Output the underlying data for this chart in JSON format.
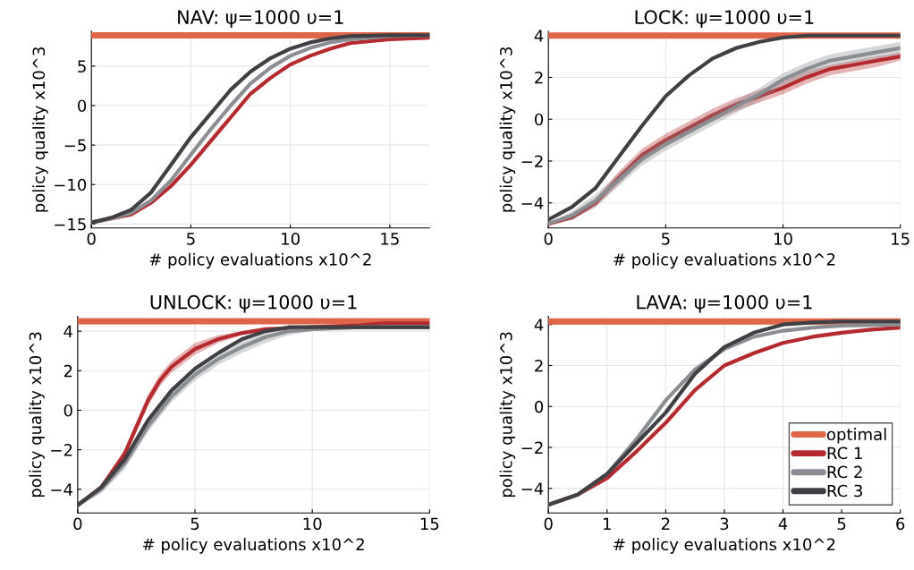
{
  "chart_data": [
    {
      "type": "line",
      "title": "NAV: ψ=1000 υ=1",
      "xlabel": "# policy evaluations x10^2",
      "ylabel": "policy quality x10^3",
      "xlim": [
        0,
        17
      ],
      "xticks": [
        0,
        5,
        10,
        15
      ],
      "ylim": [
        -15.5,
        9.4
      ],
      "yticks": [
        -15,
        -10,
        -5,
        0,
        5
      ],
      "grid": true,
      "legend": false,
      "series": [
        {
          "color": "#e0664a",
          "x": [
            0,
            17
          ],
          "values": [
            8.9,
            8.9
          ]
        },
        {
          "color": "#b52a2e",
          "x": [
            0,
            1,
            2,
            3,
            4,
            5,
            6,
            7,
            8,
            9,
            10,
            11,
            12,
            13,
            15,
            17
          ],
          "values": [
            -14.8,
            -14.3,
            -13.8,
            -12.3,
            -10.2,
            -7.5,
            -4.5,
            -1.5,
            1.5,
            3.5,
            5.2,
            6.3,
            7.2,
            7.9,
            8.4,
            8.6
          ]
        },
        {
          "color": "#8a8d91",
          "x": [
            0,
            1,
            2,
            3,
            4,
            5,
            6,
            7,
            8,
            9,
            10,
            11,
            12,
            13,
            15,
            17
          ],
          "values": [
            -14.8,
            -14.3,
            -13.6,
            -12,
            -9.5,
            -6.2,
            -3,
            0,
            2.8,
            4.8,
            6.3,
            7.3,
            8,
            8.4,
            8.8,
            8.9
          ]
        },
        {
          "color": "#404044",
          "x": [
            0,
            1,
            2,
            3,
            4,
            5,
            6,
            7,
            8,
            9,
            10,
            11,
            12,
            13,
            15,
            17
          ],
          "values": [
            -14.8,
            -14.2,
            -13.2,
            -11,
            -7.5,
            -4,
            -1,
            2,
            4.3,
            6,
            7.2,
            8,
            8.5,
            8.8,
            8.9,
            8.9
          ]
        }
      ]
    },
    {
      "type": "line",
      "title": "LOCK: ψ=1000 υ=1",
      "xlabel": "# policy evaluations x10^2",
      "ylabel": "policy quality x10^3",
      "xlim": [
        0,
        15
      ],
      "xticks": [
        0,
        5,
        10,
        15
      ],
      "ylim": [
        -5.2,
        4.2
      ],
      "yticks": [
        -4,
        -2,
        0,
        2,
        4
      ],
      "grid": true,
      "legend": false,
      "series": [
        {
          "color": "#e0664a",
          "x": [
            0,
            15
          ],
          "values": [
            4.0,
            4.0
          ]
        },
        {
          "color": "#b52a2e",
          "x": [
            0,
            1,
            2,
            3,
            4,
            5,
            6,
            7,
            8,
            9,
            10,
            11,
            12,
            13,
            14,
            15
          ],
          "values": [
            -5,
            -4.7,
            -4,
            -2.8,
            -1.7,
            -1,
            -0.4,
            0.2,
            0.7,
            1.1,
            1.5,
            2,
            2.4,
            2.6,
            2.8,
            3.0
          ],
          "lower": [
            -5,
            -4.8,
            -4.2,
            -3.1,
            -2,
            -1.3,
            -0.7,
            -0.1,
            0.4,
            0.8,
            1.2,
            1.7,
            2.1,
            2.3,
            2.5,
            2.8
          ],
          "upper": [
            -5,
            -4.6,
            -3.8,
            -2.5,
            -1.4,
            -0.7,
            -0.1,
            0.5,
            1.0,
            1.4,
            1.8,
            2.3,
            2.6,
            2.8,
            3.0,
            3.2
          ]
        },
        {
          "color": "#8a8d91",
          "x": [
            0,
            1,
            2,
            3,
            4,
            5,
            6,
            7,
            8,
            9,
            10,
            11,
            12,
            13,
            14,
            15
          ],
          "values": [
            -5,
            -4.6,
            -3.9,
            -2.9,
            -1.9,
            -1.2,
            -0.6,
            0,
            0.6,
            1.2,
            1.9,
            2.4,
            2.8,
            3,
            3.2,
            3.4
          ],
          "lower": [
            -5,
            -4.8,
            -4.2,
            -3.2,
            -2.2,
            -1.5,
            -0.9,
            -0.3,
            0.3,
            0.9,
            1.6,
            2.1,
            2.5,
            2.7,
            2.9,
            3.1
          ],
          "upper": [
            -5,
            -4.4,
            -3.6,
            -2.6,
            -1.6,
            -0.9,
            -0.3,
            0.3,
            0.9,
            1.5,
            2.2,
            2.7,
            3.1,
            3.3,
            3.5,
            3.7
          ]
        },
        {
          "color": "#404044",
          "x": [
            0,
            1,
            2,
            3,
            4,
            5,
            6,
            7,
            8,
            9,
            10,
            11,
            13,
            15
          ],
          "values": [
            -4.8,
            -4.2,
            -3.3,
            -1.8,
            -0.3,
            1.1,
            2.1,
            2.9,
            3.4,
            3.7,
            3.9,
            4,
            4,
            4
          ]
        }
      ]
    },
    {
      "type": "line",
      "title": "UNLOCK: ψ=1000 υ=1",
      "xlabel": "# policy evaluations x10^2",
      "ylabel": "policy quality x10^3",
      "xlim": [
        0,
        15
      ],
      "xticks": [
        0,
        5,
        10,
        15
      ],
      "ylim": [
        -5.2,
        4.75
      ],
      "yticks": [
        -4,
        -2,
        0,
        2,
        4
      ],
      "grid": true,
      "legend": false,
      "series": [
        {
          "color": "#e0664a",
          "x": [
            0,
            15
          ],
          "values": [
            4.5,
            4.5
          ]
        },
        {
          "color": "#b52a2e",
          "x": [
            0,
            1,
            2,
            3,
            3.5,
            4,
            5,
            6,
            7,
            8,
            10,
            12,
            13,
            15
          ],
          "values": [
            -4.8,
            -3.9,
            -2.2,
            0.5,
            1.5,
            2.2,
            3.1,
            3.6,
            3.9,
            4.1,
            4.2,
            4.3,
            4.4,
            4.4
          ],
          "lower": [
            -4.8,
            -4.0,
            -2.4,
            0.2,
            1.2,
            1.9,
            2.8,
            3.4,
            3.8,
            4.0,
            4.2,
            4.3,
            4.4,
            4.4
          ],
          "upper": [
            -4.8,
            -3.8,
            -2.0,
            0.8,
            1.8,
            2.5,
            3.4,
            3.8,
            4.0,
            4.2,
            4.2,
            4.3,
            4.4,
            4.4
          ]
        },
        {
          "color": "#8a8d91",
          "x": [
            0,
            1,
            2,
            3,
            4,
            5,
            6,
            7,
            8,
            9,
            10,
            12,
            15
          ],
          "values": [
            -4.8,
            -4,
            -2.7,
            -0.8,
            0.7,
            1.8,
            2.6,
            3.2,
            3.7,
            4,
            4.1,
            4.2,
            4.2
          ],
          "lower": [
            -4.9,
            -4.2,
            -3.0,
            -1.1,
            0.4,
            1.5,
            2.3,
            2.9,
            3.4,
            3.8,
            4.0,
            4.1,
            4.1
          ],
          "upper": [
            -4.7,
            -3.8,
            -2.4,
            -0.5,
            1.0,
            2.1,
            2.9,
            3.5,
            3.9,
            4.1,
            4.2,
            4.3,
            4.3
          ]
        },
        {
          "color": "#404044",
          "x": [
            0,
            1,
            2,
            3,
            4,
            5,
            6,
            7,
            8,
            9,
            10,
            12,
            15
          ],
          "values": [
            -4.8,
            -3.9,
            -2.5,
            -0.5,
            1.0,
            2.1,
            2.9,
            3.6,
            4.0,
            4.2,
            4.2,
            4.2,
            4.2
          ]
        }
      ]
    },
    {
      "type": "line",
      "title": "LAVA: ψ=1000 υ=1",
      "xlabel": "# policy evaluations x10^2",
      "ylabel": "policy quality x10^3",
      "xlim": [
        0,
        6
      ],
      "xticks": [
        0,
        1,
        2,
        3,
        4,
        5,
        6
      ],
      "ylim": [
        -5.2,
        4.4
      ],
      "yticks": [
        -4,
        -2,
        0,
        2,
        4
      ],
      "grid": true,
      "legend": "bottom right",
      "series": [
        {
          "name": "optimal",
          "color": "#e0664a",
          "x": [
            0,
            6
          ],
          "values": [
            4.15,
            4.15
          ]
        },
        {
          "name": "RC 1",
          "color": "#b52a2e",
          "x": [
            0,
            0.5,
            1,
            1.5,
            2,
            2.5,
            3,
            3.5,
            4,
            4.5,
            5,
            5.5,
            6
          ],
          "values": [
            -4.8,
            -4.3,
            -3.5,
            -2.2,
            -0.8,
            0.8,
            2,
            2.6,
            3.1,
            3.4,
            3.6,
            3.75,
            3.85
          ]
        },
        {
          "name": "RC 2",
          "color": "#8a8d91",
          "x": [
            0,
            0.5,
            1,
            1.5,
            2,
            2.5,
            3,
            3.5,
            4,
            4.5,
            5,
            6
          ],
          "values": [
            -4.8,
            -4.3,
            -3.3,
            -1.6,
            0.3,
            1.8,
            2.8,
            3.4,
            3.7,
            3.85,
            3.95,
            4
          ]
        },
        {
          "name": "RC 3",
          "color": "#404044",
          "x": [
            0,
            0.5,
            1,
            1.5,
            2,
            2.5,
            3,
            3.5,
            4,
            4.5,
            5,
            6
          ],
          "values": [
            -4.8,
            -4.3,
            -3.3,
            -1.8,
            -0.3,
            1.6,
            2.9,
            3.6,
            4.0,
            4.1,
            4.15,
            4.15
          ]
        }
      ]
    }
  ]
}
